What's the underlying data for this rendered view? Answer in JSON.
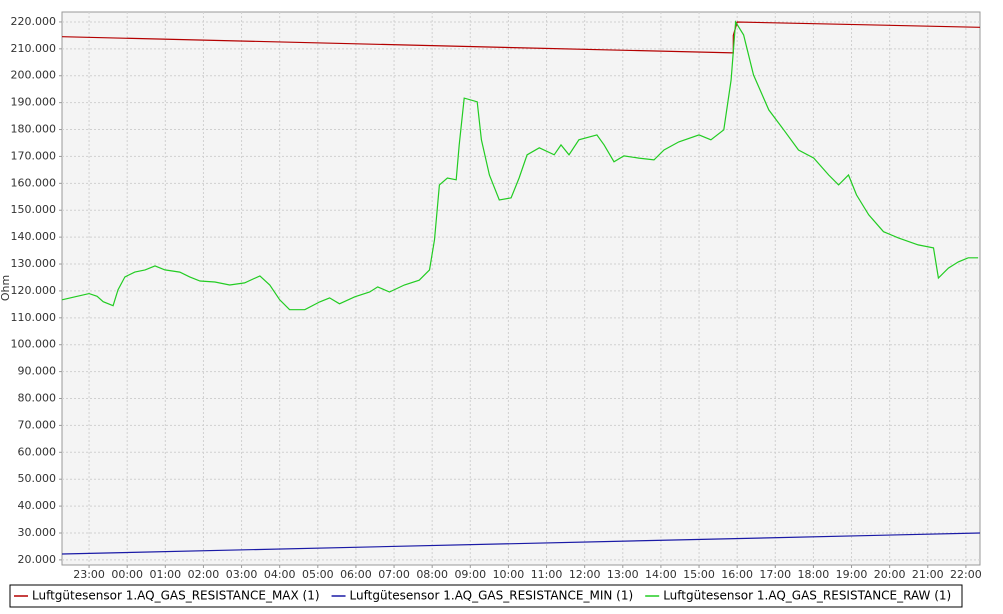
{
  "chart_data": {
    "type": "line",
    "y_label": "Ohm",
    "grid": true,
    "legend": "bottom",
    "xlim": [
      22.29,
      46.37
    ],
    "ylim": [
      18100,
      223700
    ],
    "xticks": [
      {
        "value": 23,
        "label": "23:00"
      },
      {
        "value": 24,
        "label": "00:00"
      },
      {
        "value": 25,
        "label": "01:00"
      },
      {
        "value": 26,
        "label": "02:00"
      },
      {
        "value": 27,
        "label": "03:00"
      },
      {
        "value": 28,
        "label": "04:00"
      },
      {
        "value": 29,
        "label": "05:00"
      },
      {
        "value": 30,
        "label": "06:00"
      },
      {
        "value": 31,
        "label": "07:00"
      },
      {
        "value": 32,
        "label": "08:00"
      },
      {
        "value": 33,
        "label": "09:00"
      },
      {
        "value": 34,
        "label": "10:00"
      },
      {
        "value": 35,
        "label": "11:00"
      },
      {
        "value": 36,
        "label": "12:00"
      },
      {
        "value": 37,
        "label": "13:00"
      },
      {
        "value": 38,
        "label": "14:00"
      },
      {
        "value": 39,
        "label": "15:00"
      },
      {
        "value": 40,
        "label": "16:00"
      },
      {
        "value": 41,
        "label": "17:00"
      },
      {
        "value": 42,
        "label": "18:00"
      },
      {
        "value": 43,
        "label": "19:00"
      },
      {
        "value": 44,
        "label": "20:00"
      },
      {
        "value": 45,
        "label": "21:00"
      },
      {
        "value": 46,
        "label": "22:00"
      }
    ],
    "yticks": [
      {
        "value": 20000,
        "label": "20.000"
      },
      {
        "value": 30000,
        "label": "30.000"
      },
      {
        "value": 40000,
        "label": "40.000"
      },
      {
        "value": 50000,
        "label": "50.000"
      },
      {
        "value": 60000,
        "label": "60.000"
      },
      {
        "value": 70000,
        "label": "70.000"
      },
      {
        "value": 80000,
        "label": "80.000"
      },
      {
        "value": 90000,
        "label": "90.000"
      },
      {
        "value": 100000,
        "label": "100.000"
      },
      {
        "value": 110000,
        "label": "110.000"
      },
      {
        "value": 120000,
        "label": "120.000"
      },
      {
        "value": 130000,
        "label": "130.000"
      },
      {
        "value": 140000,
        "label": "140.000"
      },
      {
        "value": 150000,
        "label": "150.000"
      },
      {
        "value": 160000,
        "label": "160.000"
      },
      {
        "value": 170000,
        "label": "170.000"
      },
      {
        "value": 180000,
        "label": "180.000"
      },
      {
        "value": 190000,
        "label": "190.000"
      },
      {
        "value": 200000,
        "label": "200.000"
      },
      {
        "value": 210000,
        "label": "210.000"
      },
      {
        "value": 220000,
        "label": "220.000"
      }
    ],
    "series": [
      {
        "name": "Luftgütesensor 1.AQ_GAS_RESISTANCE_MAX (1)",
        "color": "#b40000",
        "x": [
          22.29,
          39.9,
          39.9,
          40.0,
          46.37
        ],
        "values": [
          214500,
          208500,
          215000,
          220000,
          218000
        ]
      },
      {
        "name": "Luftgütesensor 1.AQ_GAS_RESISTANCE_MIN (1)",
        "color": "#1a1aa6",
        "x": [
          22.29,
          46.37
        ],
        "values": [
          22200,
          30000
        ]
      },
      {
        "name": "Luftgütesensor 1.AQ_GAS_RESISTANCE_RAW (1)",
        "color": "#22cc22",
        "x": [
          22.29,
          22.63,
          23,
          23.21,
          23.37,
          23.63,
          23.76,
          23.94,
          24.2,
          24.47,
          24.73,
          24.99,
          25.38,
          25.64,
          25.91,
          26.3,
          26.69,
          27.08,
          27.48,
          27.74,
          28,
          28.26,
          28.66,
          29.05,
          29.31,
          29.57,
          29.97,
          30.36,
          30.57,
          30.88,
          31.27,
          31.66,
          31.93,
          32.06,
          32.19,
          32.4,
          32.63,
          32.71,
          32.84,
          33.18,
          33.29,
          33.5,
          33.76,
          34.07,
          34.28,
          34.49,
          34.81,
          35.2,
          35.38,
          35.59,
          35.85,
          36.32,
          36.51,
          36.77,
          37.03,
          37.42,
          37.82,
          38.08,
          38.47,
          39,
          39.31,
          39.65,
          39.84,
          39.96,
          40.17,
          40.43,
          40.83,
          41.22,
          41.61,
          42.01,
          42.4,
          42.66,
          42.92,
          43.13,
          43.45,
          43.84,
          44.23,
          44.75,
          45.15,
          45.28,
          45.54,
          45.8,
          46.06,
          46.32
        ],
        "values": [
          116700,
          117800,
          119000,
          118000,
          116000,
          114500,
          120400,
          125200,
          127000,
          127800,
          129300,
          127800,
          127000,
          125200,
          123700,
          123300,
          122200,
          123000,
          125600,
          122200,
          116700,
          113000,
          113000,
          115900,
          117400,
          115200,
          117800,
          119600,
          121500,
          119600,
          122200,
          124000,
          127800,
          139000,
          159400,
          162000,
          161300,
          174300,
          191700,
          190300,
          176200,
          163100,
          153800,
          154600,
          162000,
          170600,
          173200,
          170600,
          174300,
          170600,
          176200,
          178000,
          174300,
          168000,
          170200,
          169400,
          168700,
          172400,
          175400,
          178000,
          176200,
          179900,
          198400,
          220000,
          215200,
          200300,
          187300,
          179900,
          172400,
          169400,
          163100,
          159400,
          163100,
          155700,
          148300,
          142000,
          139700,
          137100,
          136000,
          124800,
          128500,
          130800,
          132300,
          132300
        ]
      }
    ]
  }
}
